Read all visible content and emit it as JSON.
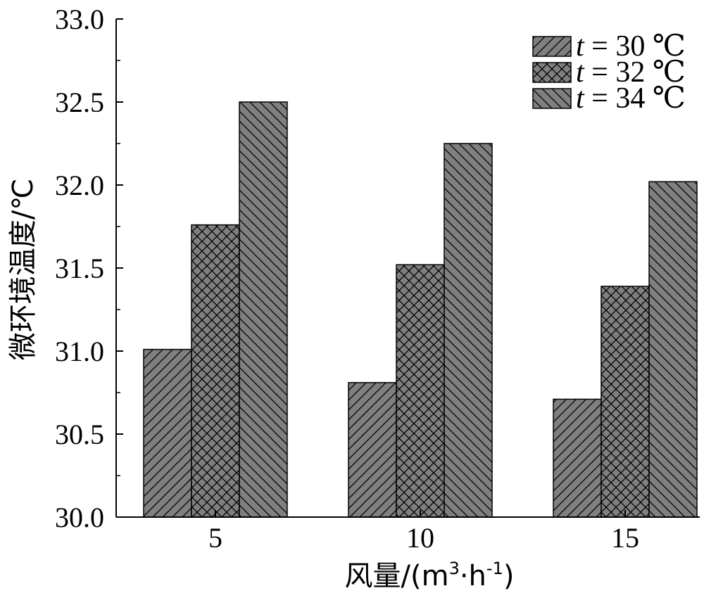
{
  "chart_data": {
    "type": "bar",
    "categories": [
      "5",
      "10",
      "15"
    ],
    "series": [
      {
        "name": "t = 30 ℃",
        "var": "t",
        "rest": " = 30 ℃",
        "values": [
          31.01,
          30.81,
          30.71
        ],
        "pattern": "diag-right"
      },
      {
        "name": "t = 32 ℃",
        "var": "t",
        "rest": " = 32 ℃",
        "values": [
          31.76,
          31.52,
          31.39
        ],
        "pattern": "cross"
      },
      {
        "name": "t = 34 ℃",
        "var": "t",
        "rest": " = 34 ℃",
        "values": [
          32.5,
          32.25,
          32.02
        ],
        "pattern": "diag-left"
      }
    ],
    "xlabel": {
      "main": "风量/(m",
      "sup1": "3",
      "mid": "·h",
      "sup2": "-1",
      "end": ")"
    },
    "ylabel": "微环境温度/℃",
    "ylim": [
      30.0,
      33.0
    ],
    "yticks": [
      "30.0",
      "30.5",
      "31.0",
      "31.5",
      "32.0",
      "32.5",
      "33.0"
    ],
    "legend_position": "top-right",
    "bar_color": "#7f7f7f",
    "hatch_color": "#000000"
  }
}
